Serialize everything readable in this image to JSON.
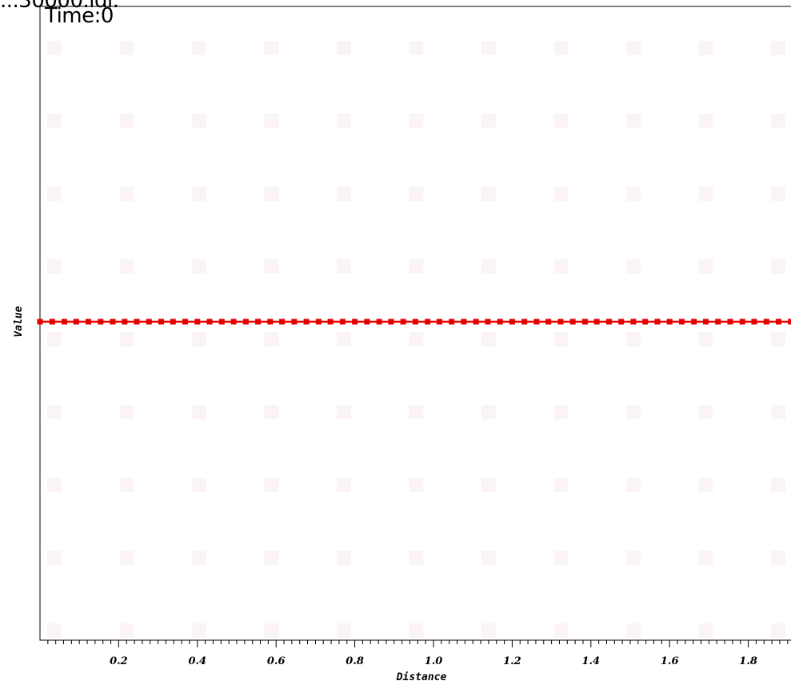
{
  "header": {
    "clipped_title": "...30000.ıdı.",
    "time_label": "Time:0"
  },
  "chart_data": {
    "type": "line",
    "title": "",
    "xlabel": "Distance",
    "ylabel": "Value",
    "xlim": [
      0,
      1.92
    ],
    "x_ticks": [
      0.2,
      0.4,
      0.6,
      0.8,
      1.0,
      1.2,
      1.4,
      1.6,
      1.8
    ],
    "x_tick_labels": [
      "0.2",
      "0.4",
      "0.6",
      "0.8",
      "1.0",
      "1.2",
      "1.4",
      "1.6",
      "1.8"
    ],
    "minor_tick_step": 0.02,
    "grid": false,
    "legend": "none",
    "series": [
      {
        "color": "#e60000",
        "marker": "square",
        "x": [
          0.0,
          0.031,
          0.062,
          0.092,
          0.123,
          0.154,
          0.185,
          0.215,
          0.246,
          0.277,
          0.308,
          0.338,
          0.369,
          0.4,
          0.431,
          0.462,
          0.492,
          0.523,
          0.554,
          0.585,
          0.615,
          0.646,
          0.677,
          0.708,
          0.738,
          0.769,
          0.8,
          0.831,
          0.862,
          0.892,
          0.923,
          0.954,
          0.985,
          1.015,
          1.046,
          1.077,
          1.108,
          1.138,
          1.169,
          1.2,
          1.231,
          1.262,
          1.292,
          1.323,
          1.354,
          1.385,
          1.415,
          1.446,
          1.477,
          1.508,
          1.538,
          1.569,
          1.6,
          1.631,
          1.662,
          1.692,
          1.723,
          1.754,
          1.785,
          1.815,
          1.846,
          1.877,
          1.908
        ],
        "y": [
          0,
          0,
          0,
          0,
          0,
          0,
          0,
          0,
          0,
          0,
          0,
          0,
          0,
          0,
          0,
          0,
          0,
          0,
          0,
          0,
          0,
          0,
          0,
          0,
          0,
          0,
          0,
          0,
          0,
          0,
          0,
          0,
          0,
          0,
          0,
          0,
          0,
          0,
          0,
          0,
          0,
          0,
          0,
          0,
          0,
          0,
          0,
          0,
          0,
          0,
          0,
          0,
          0,
          0,
          0,
          0,
          0,
          0,
          0,
          0,
          0,
          0,
          0
        ]
      }
    ]
  }
}
